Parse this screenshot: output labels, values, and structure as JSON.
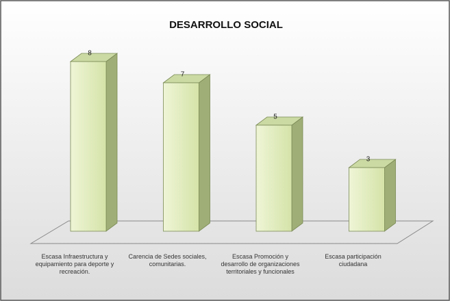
{
  "chart_data": {
    "type": "bar3d",
    "title": "DESARROLLO SOCIAL",
    "categories": [
      "Escasa Infraestructura y equipamiento para deporte y recreación.",
      "Carencia de Sedes sociales, comunitarias.",
      "Escasa Promoción y desarrollo de organizaciones territoriales y funcionales",
      "Escasa participación ciudadana"
    ],
    "values": [
      8,
      7,
      5,
      3
    ],
    "color": "#e2edbd"
  }
}
